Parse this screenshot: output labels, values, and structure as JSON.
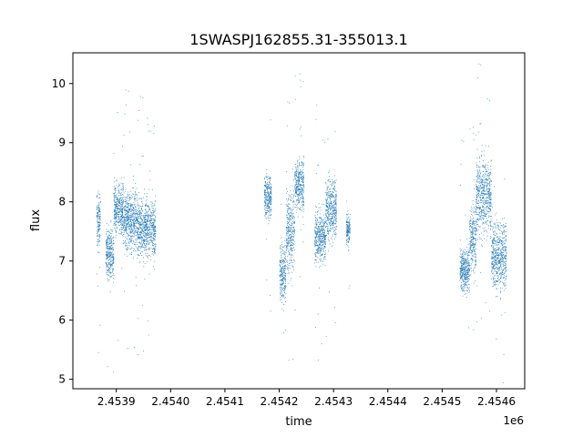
{
  "chart_data": {
    "type": "scatter",
    "title": "1SWASPJ162855.31-355013.1",
    "xlabel": "time",
    "ylabel": "flux",
    "x_offset_label": "1e6",
    "x_tick_labels": [
      "2.4539",
      "2.4540",
      "2.4541",
      "2.4542",
      "2.4543",
      "2.4544",
      "2.4545",
      "2.4546"
    ],
    "x_ticks": [
      2453900,
      2454000,
      2454100,
      2454200,
      2454300,
      2454400,
      2454500,
      2454600
    ],
    "y_ticks": [
      5,
      6,
      7,
      8,
      9,
      10
    ],
    "xlim": [
      2453820,
      2454652
    ],
    "ylim": [
      4.84,
      10.52
    ],
    "marker_color": "#1f77b4",
    "grid": false,
    "clusters": [
      {
        "x_start": 2453863,
        "x_end": 2453870,
        "center": 7.7,
        "spread": 0.3
      },
      {
        "x_start": 2453880,
        "x_end": 2453895,
        "center": 7.1,
        "spread": 0.3
      },
      {
        "x_start": 2453895,
        "x_end": 2453912,
        "center": 7.9,
        "spread": 0.3
      },
      {
        "x_start": 2453912,
        "x_end": 2453938,
        "center": 7.7,
        "spread": 0.35
      },
      {
        "x_start": 2453938,
        "x_end": 2453972,
        "center": 7.55,
        "spread": 0.35
      },
      {
        "x_start": 2454172,
        "x_end": 2454185,
        "center": 8.1,
        "spread": 0.25
      },
      {
        "x_start": 2454200,
        "x_end": 2454212,
        "center": 6.8,
        "spread": 0.35
      },
      {
        "x_start": 2454212,
        "x_end": 2454228,
        "center": 7.5,
        "spread": 0.5
      },
      {
        "x_start": 2454228,
        "x_end": 2454245,
        "center": 8.3,
        "spread": 0.3
      },
      {
        "x_start": 2454265,
        "x_end": 2454285,
        "center": 7.4,
        "spread": 0.3
      },
      {
        "x_start": 2454285,
        "x_end": 2454305,
        "center": 7.9,
        "spread": 0.35
      },
      {
        "x_start": 2454323,
        "x_end": 2454330,
        "center": 7.55,
        "spread": 0.2
      },
      {
        "x_start": 2454532,
        "x_end": 2454550,
        "center": 6.85,
        "spread": 0.25
      },
      {
        "x_start": 2454550,
        "x_end": 2454562,
        "center": 7.4,
        "spread": 0.4
      },
      {
        "x_start": 2454562,
        "x_end": 2454590,
        "center": 8.1,
        "spread": 0.45
      },
      {
        "x_start": 2454590,
        "x_end": 2454618,
        "center": 7.1,
        "spread": 0.4
      }
    ]
  }
}
